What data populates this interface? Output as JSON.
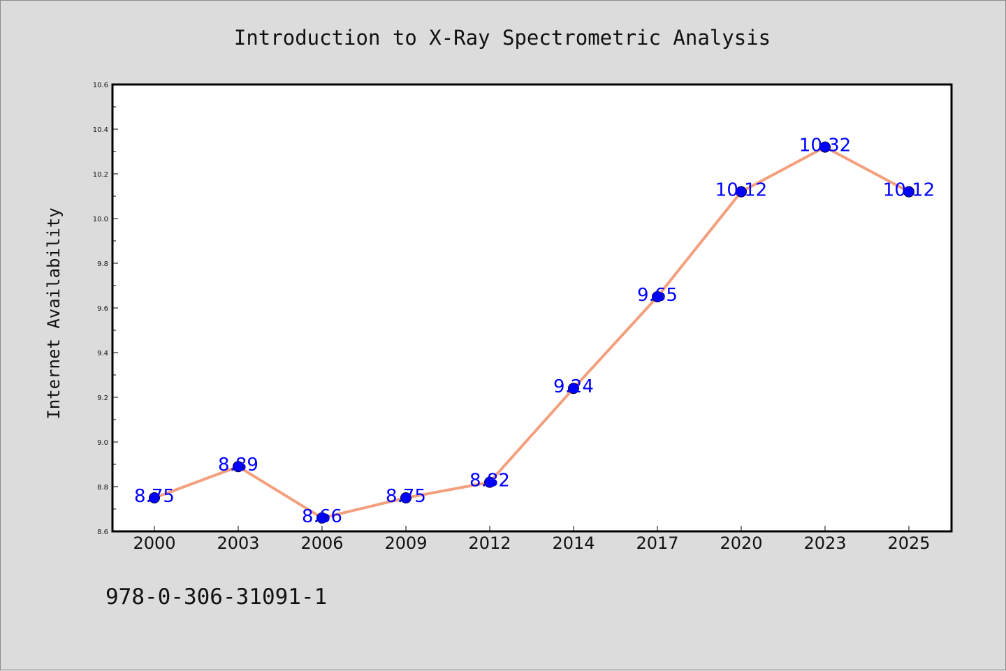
{
  "chart_data": {
    "type": "line",
    "title": "Introduction to X-Ray Spectrometric Analysis",
    "xlabel": "",
    "ylabel": "Internet Availability",
    "categories": [
      "2000",
      "2003",
      "2006",
      "2009",
      "2012",
      "2014",
      "2017",
      "2020",
      "2023",
      "2025"
    ],
    "series": [
      {
        "values": [
          8.75,
          8.89,
          8.66,
          8.75,
          8.82,
          9.24,
          9.65,
          10.12,
          10.32,
          10.12
        ],
        "line_color": "#f4a07e",
        "marker_color": "#0000ff",
        "label_color": "#0000ff"
      }
    ],
    "data_labels": [
      "8.75",
      "8.89",
      "8.66",
      "8.75",
      "8.82",
      "9.24",
      "9.65",
      "10.12",
      "10.32",
      "10.12"
    ],
    "ylim": [
      8.6,
      10.6
    ],
    "yticks": [
      "8.6",
      "8.8",
      "9.0",
      "9.2",
      "9.4",
      "9.6",
      "9.8",
      "10.0",
      "10.2",
      "10.4",
      "10.6"
    ],
    "grid": false,
    "legend": "none"
  },
  "footer": {
    "isbn": "978-0-306-31091-1"
  }
}
